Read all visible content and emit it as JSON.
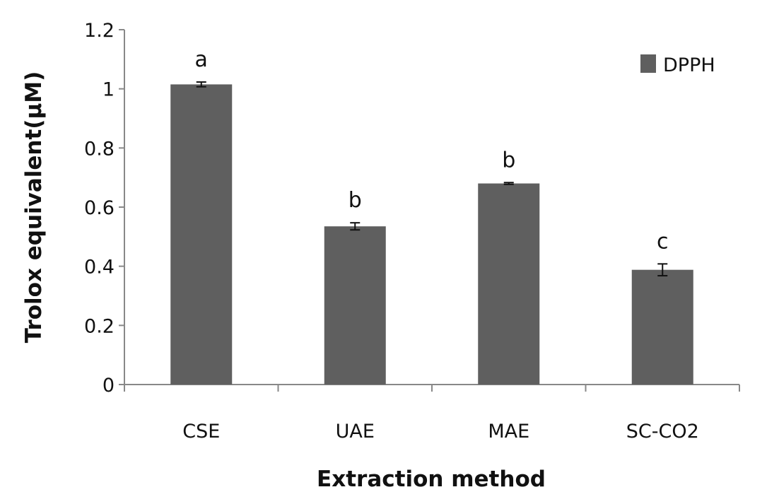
{
  "chart_data": {
    "type": "bar",
    "categories": [
      "CSE",
      "UAE",
      "MAE",
      "SC-CO2"
    ],
    "series": [
      {
        "name": "DPPH",
        "values": [
          1.015,
          0.535,
          0.68,
          0.388
        ],
        "errors": [
          0.008,
          0.012,
          0.003,
          0.02
        ],
        "significance": [
          "a",
          "b",
          "b",
          "c"
        ]
      }
    ],
    "xlabel": "Extraction method",
    "ylabel": "Trolox equivalent(μM)",
    "ylim": [
      0,
      1.2
    ],
    "yticks": [
      "0",
      "0.2",
      "0.4",
      "0.6",
      "0.8",
      "1",
      "1.2"
    ],
    "legend_position": "top-right",
    "grid": false,
    "bar_color": "#5f5f5f",
    "axis_color": "#888888"
  }
}
